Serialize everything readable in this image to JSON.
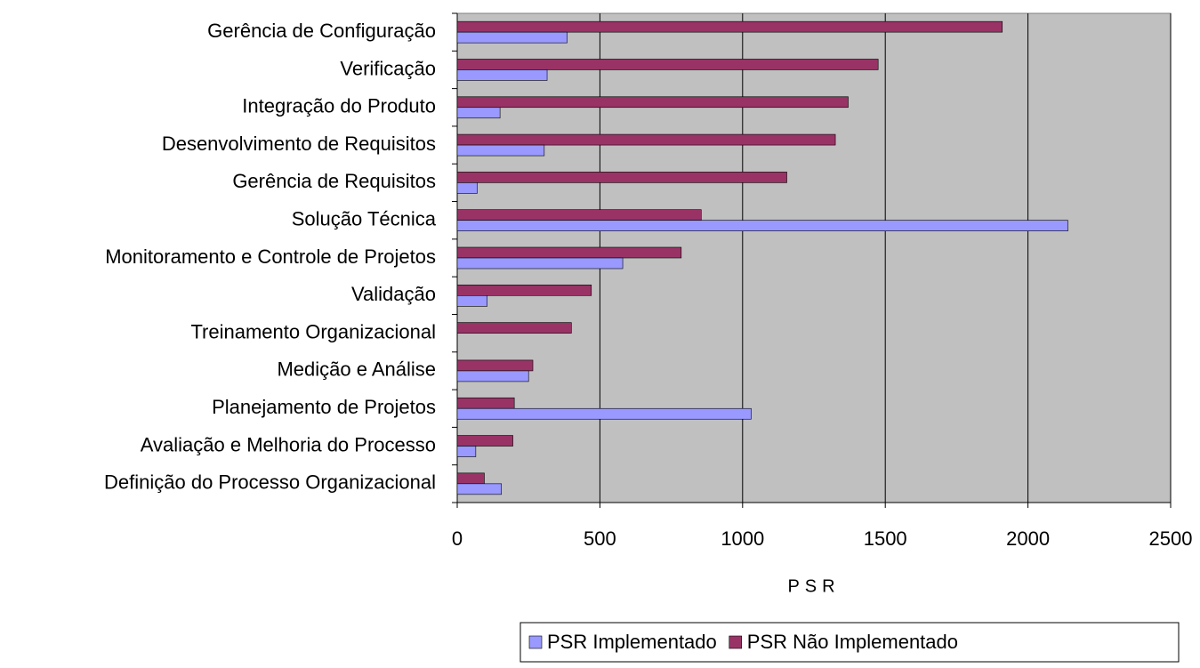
{
  "chart_data": {
    "type": "bar",
    "orientation": "horizontal",
    "categories": [
      "Gerência de Configuração",
      "Verificação",
      "Integração do Produto",
      "Desenvolvimento de Requisitos",
      "Gerência de Requisitos",
      "Solução Técnica",
      "Monitoramento e Controle de Projetos",
      "Validação",
      "Treinamento Organizacional",
      "Medição e Análise",
      "Planejamento de Projetos",
      "Avaliação e Melhoria do Processo",
      "Definição do Processo Organizacional"
    ],
    "series": [
      {
        "name": "PSR Implementado",
        "color": "#9999ff",
        "values": [
          385,
          315,
          150,
          305,
          70,
          2140,
          580,
          105,
          0,
          250,
          1030,
          65,
          155
        ]
      },
      {
        "name": "PSR Não Implementado",
        "color": "#993366",
        "values": [
          1910,
          1475,
          1370,
          1325,
          1155,
          855,
          785,
          470,
          400,
          265,
          200,
          195,
          95
        ]
      }
    ],
    "xlabel": "PSR",
    "xlim": [
      0,
      2500
    ],
    "xticks": [
      0,
      500,
      1000,
      1500,
      2000,
      2500
    ],
    "grid": true,
    "legend": "bottom"
  }
}
